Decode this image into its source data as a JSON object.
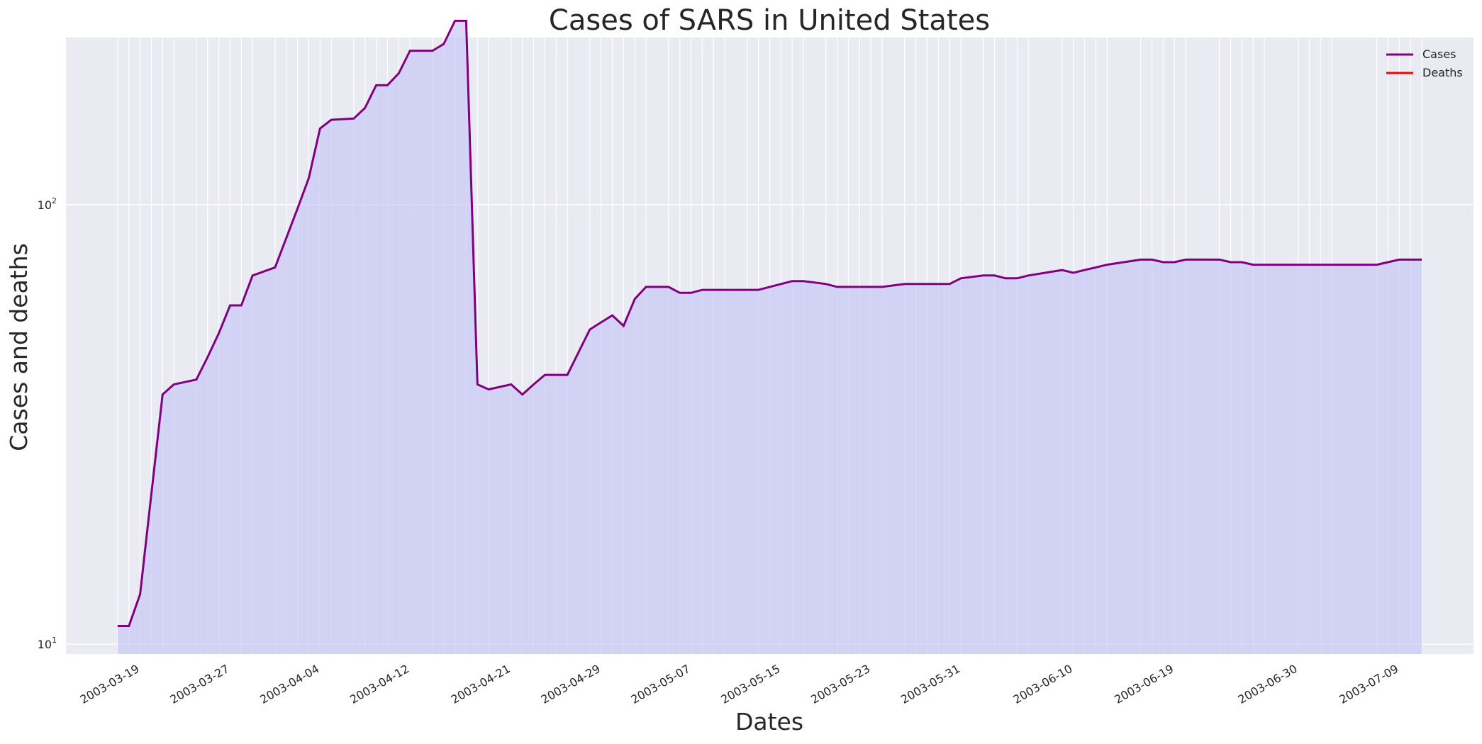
{
  "chart_data": {
    "type": "line",
    "title": "Cases of SARS in United States",
    "xlabel": "Dates",
    "ylabel": "Cases and deaths",
    "yscale": "log",
    "ylim": [
      9.5,
      240
    ],
    "grid": true,
    "legend_position": "top-right",
    "x_ticks": [
      "2003-03-19",
      "2003-03-27",
      "2003-04-04",
      "2003-04-12",
      "2003-04-21",
      "2003-04-29",
      "2003-05-07",
      "2003-05-15",
      "2003-05-23",
      "2003-05-31",
      "2003-06-10",
      "2003-06-19",
      "2003-06-30",
      "2003-07-09"
    ],
    "y_ticks": [
      {
        "value": 10,
        "base": "10",
        "exp": "1"
      },
      {
        "value": 100,
        "base": "10",
        "exp": "2"
      }
    ],
    "x": [
      "2003-03-17",
      "2003-03-18",
      "2003-03-19",
      "2003-03-20",
      "2003-03-21",
      "2003-03-22",
      "2003-03-24",
      "2003-03-25",
      "2003-03-26",
      "2003-03-27",
      "2003-03-28",
      "2003-03-29",
      "2003-03-31",
      "2003-04-01",
      "2003-04-02",
      "2003-04-03",
      "2003-04-04",
      "2003-04-05",
      "2003-04-07",
      "2003-04-08",
      "2003-04-09",
      "2003-04-10",
      "2003-04-11",
      "2003-04-12",
      "2003-04-14",
      "2003-04-15",
      "2003-04-16",
      "2003-04-17",
      "2003-04-18",
      "2003-04-19",
      "2003-04-21",
      "2003-04-22",
      "2003-04-23",
      "2003-04-24",
      "2003-04-25",
      "2003-04-26",
      "2003-04-28",
      "2003-04-29",
      "2003-04-30",
      "2003-05-01",
      "2003-05-02",
      "2003-05-03",
      "2003-05-05",
      "2003-05-06",
      "2003-05-07",
      "2003-05-08",
      "2003-05-09",
      "2003-05-10",
      "2003-05-12",
      "2003-05-13",
      "2003-05-14",
      "2003-05-15",
      "2003-05-16",
      "2003-05-17",
      "2003-05-19",
      "2003-05-20",
      "2003-05-21",
      "2003-05-22",
      "2003-05-23",
      "2003-05-24",
      "2003-05-26",
      "2003-05-27",
      "2003-05-28",
      "2003-05-29",
      "2003-05-30",
      "2003-05-31",
      "2003-06-02",
      "2003-06-03",
      "2003-06-04",
      "2003-06-05",
      "2003-06-06",
      "2003-06-09",
      "2003-06-10",
      "2003-06-11",
      "2003-06-12",
      "2003-06-13",
      "2003-06-16",
      "2003-06-17",
      "2003-06-18",
      "2003-06-19",
      "2003-06-20",
      "2003-06-23",
      "2003-06-24",
      "2003-06-25",
      "2003-06-26",
      "2003-06-27",
      "2003-06-30",
      "2003-07-01",
      "2003-07-02",
      "2003-07-03",
      "2003-07-07",
      "2003-07-08",
      "2003-07-09",
      "2003-07-10",
      "2003-07-11"
    ],
    "series": [
      {
        "name": "Cases",
        "color": "#800080",
        "values": [
          11,
          11,
          13,
          22,
          37,
          39,
          40,
          45,
          51,
          59,
          59,
          69,
          72,
          84,
          98,
          115,
          149,
          156,
          157,
          166,
          187,
          187,
          199,
          224,
          224,
          232,
          262,
          262,
          39,
          38,
          39,
          37,
          39,
          41,
          41,
          41,
          52,
          54,
          56,
          53,
          61,
          65,
          65,
          63,
          63,
          64,
          64,
          64,
          64,
          64,
          65,
          66,
          67,
          67,
          66,
          65,
          65,
          65,
          65,
          65,
          66,
          66,
          66,
          66,
          66,
          68,
          69,
          69,
          68,
          68,
          69,
          71,
          70,
          71,
          72,
          73,
          75,
          75,
          74,
          74,
          75,
          75,
          74,
          74,
          73,
          73,
          73,
          73,
          73,
          73,
          73,
          74,
          75,
          75,
          75
        ]
      },
      {
        "name": "Deaths",
        "color": "#ff0000",
        "values": [
          0,
          0,
          0,
          0,
          0,
          0,
          0,
          0,
          0,
          0,
          0,
          0,
          0,
          0,
          0,
          0,
          0,
          0,
          0,
          0,
          0,
          0,
          0,
          0,
          0,
          0,
          0,
          0,
          0,
          0,
          0,
          0,
          0,
          0,
          0,
          0,
          0,
          0,
          0,
          0,
          0,
          0,
          0,
          0,
          0,
          0,
          0,
          0,
          0,
          0,
          0,
          0,
          0,
          0,
          0,
          0,
          0,
          0,
          0,
          0,
          0,
          0,
          0,
          0,
          0,
          0,
          0,
          0,
          0,
          0,
          0,
          0,
          0,
          0,
          0,
          0,
          0,
          0,
          0,
          0,
          0,
          0,
          0,
          0,
          0,
          0,
          0,
          0,
          0,
          0,
          0,
          0,
          0,
          0,
          0
        ]
      }
    ],
    "fill_color": "#c8c8f5",
    "plot_background": "#eaeaf2"
  }
}
